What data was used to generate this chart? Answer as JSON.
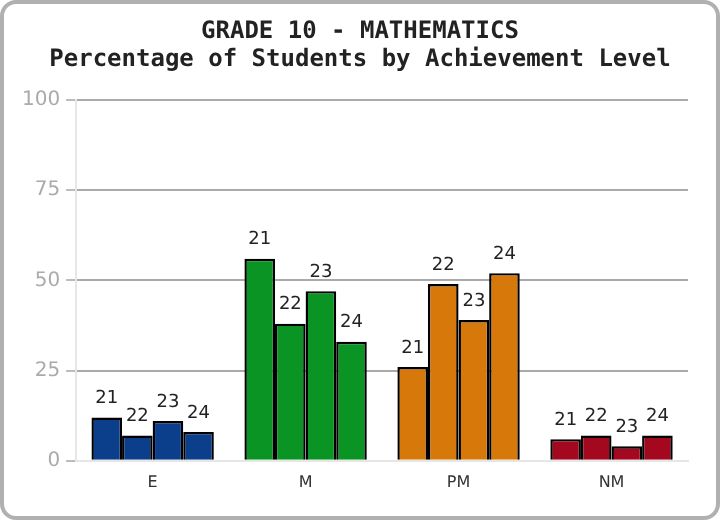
{
  "chart_data": {
    "type": "bar",
    "title": "GRADE 10 - MATHEMATICS",
    "subtitle": "Percentage of Students by Achievement Level",
    "categories": [
      "E",
      "M",
      "PM",
      "NM"
    ],
    "series": [
      {
        "name": "21",
        "colors": [
          "#0b3f8c",
          "#0a9423",
          "#d6780a",
          "#a3081f"
        ],
        "values": [
          12,
          56,
          26,
          6
        ]
      },
      {
        "name": "22",
        "colors": [
          "#0b3f8c",
          "#0a9423",
          "#d6780a",
          "#a3081f"
        ],
        "values": [
          7,
          38,
          49,
          7
        ]
      },
      {
        "name": "23",
        "colors": [
          "#0b3f8c",
          "#0a9423",
          "#d6780a",
          "#a3081f"
        ],
        "values": [
          11,
          47,
          39,
          4
        ]
      },
      {
        "name": "24",
        "colors": [
          "#0b3f8c",
          "#0a9423",
          "#d6780a",
          "#a3081f"
        ],
        "values": [
          8,
          33,
          52,
          7
        ]
      }
    ],
    "ylim": [
      0,
      100
    ],
    "yticks": [
      0,
      25,
      50,
      75,
      100
    ],
    "grid": "y",
    "legend": false
  }
}
